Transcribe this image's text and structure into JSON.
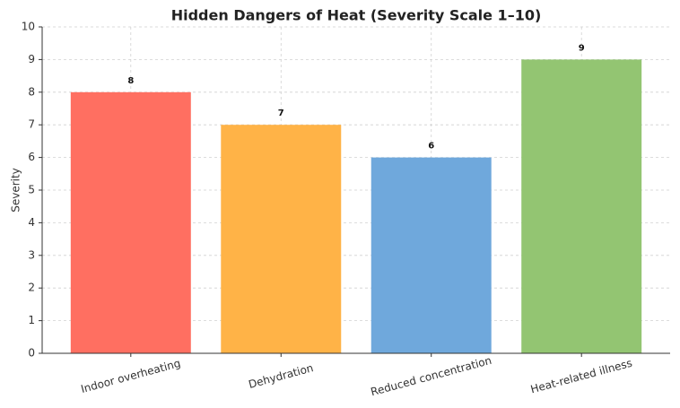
{
  "chart_data": {
    "type": "bar",
    "title": "Hidden Dangers of Heat (Severity Scale 1–10)",
    "y_label": "Severity",
    "categories": [
      "Indoor overheating",
      "Dehydration",
      "Reduced concentration",
      "Heat-related illness"
    ],
    "values": [
      8,
      7,
      6,
      9
    ],
    "colors": [
      "#ff6f61",
      "#ffb347",
      "#6fa8dc",
      "#93c572"
    ],
    "ylim": [
      0,
      10
    ],
    "yticks": [
      0,
      1,
      2,
      3,
      4,
      5,
      6,
      7,
      8,
      9,
      10
    ],
    "grid": true
  }
}
